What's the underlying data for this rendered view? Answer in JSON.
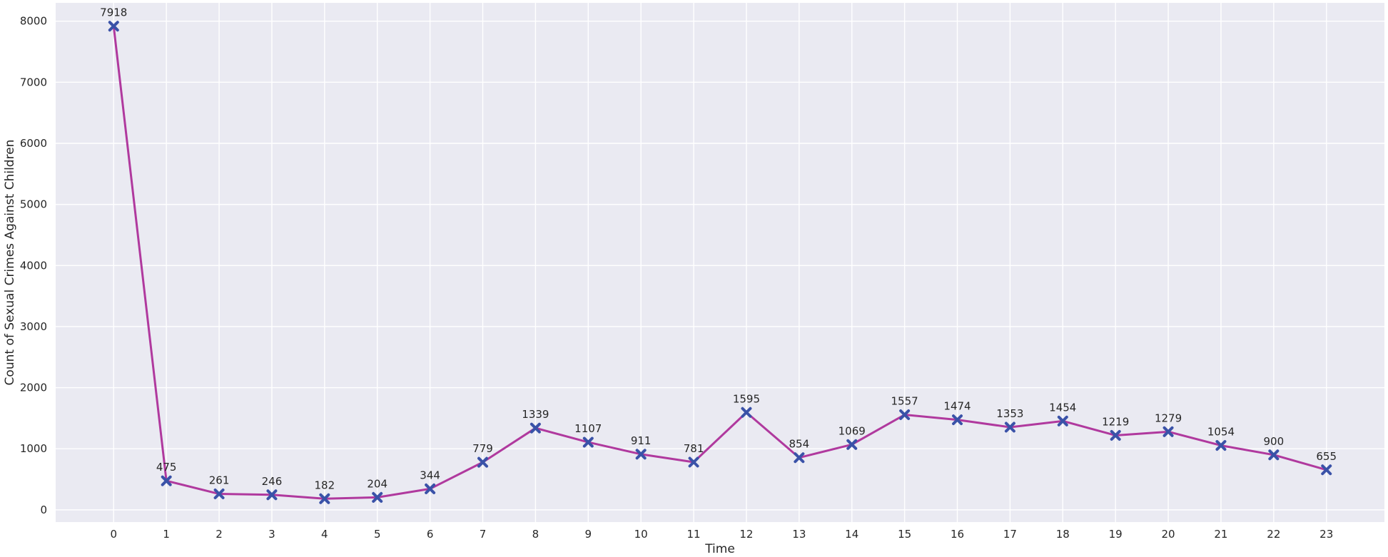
{
  "chart_data": {
    "type": "line",
    "xlabel": "Time",
    "ylabel": "Count of Sexual Crimes Against Children",
    "x": [
      0,
      1,
      2,
      3,
      4,
      5,
      6,
      7,
      8,
      9,
      10,
      11,
      12,
      13,
      14,
      15,
      16,
      17,
      18,
      19,
      20,
      21,
      22,
      23
    ],
    "series": [
      {
        "values": [
          7918,
          475,
          261,
          246,
          182,
          204,
          344,
          779,
          1339,
          1107,
          911,
          781,
          1595,
          854,
          1069,
          1557,
          1474,
          1353,
          1454,
          1219,
          1279,
          1054,
          900,
          655
        ]
      }
    ],
    "y_ticks": [
      0,
      1000,
      2000,
      3000,
      4000,
      5000,
      6000,
      7000,
      8000
    ],
    "xlim": [
      -1.1,
      24.1
    ],
    "ylim": [
      -200,
      8300
    ],
    "grid": true,
    "data_labels": true,
    "marker": "X",
    "colors": {
      "line": "#b0399e",
      "marker": "#3a52a8",
      "background": "#eaeaf2",
      "grid": "#ffffff"
    }
  }
}
